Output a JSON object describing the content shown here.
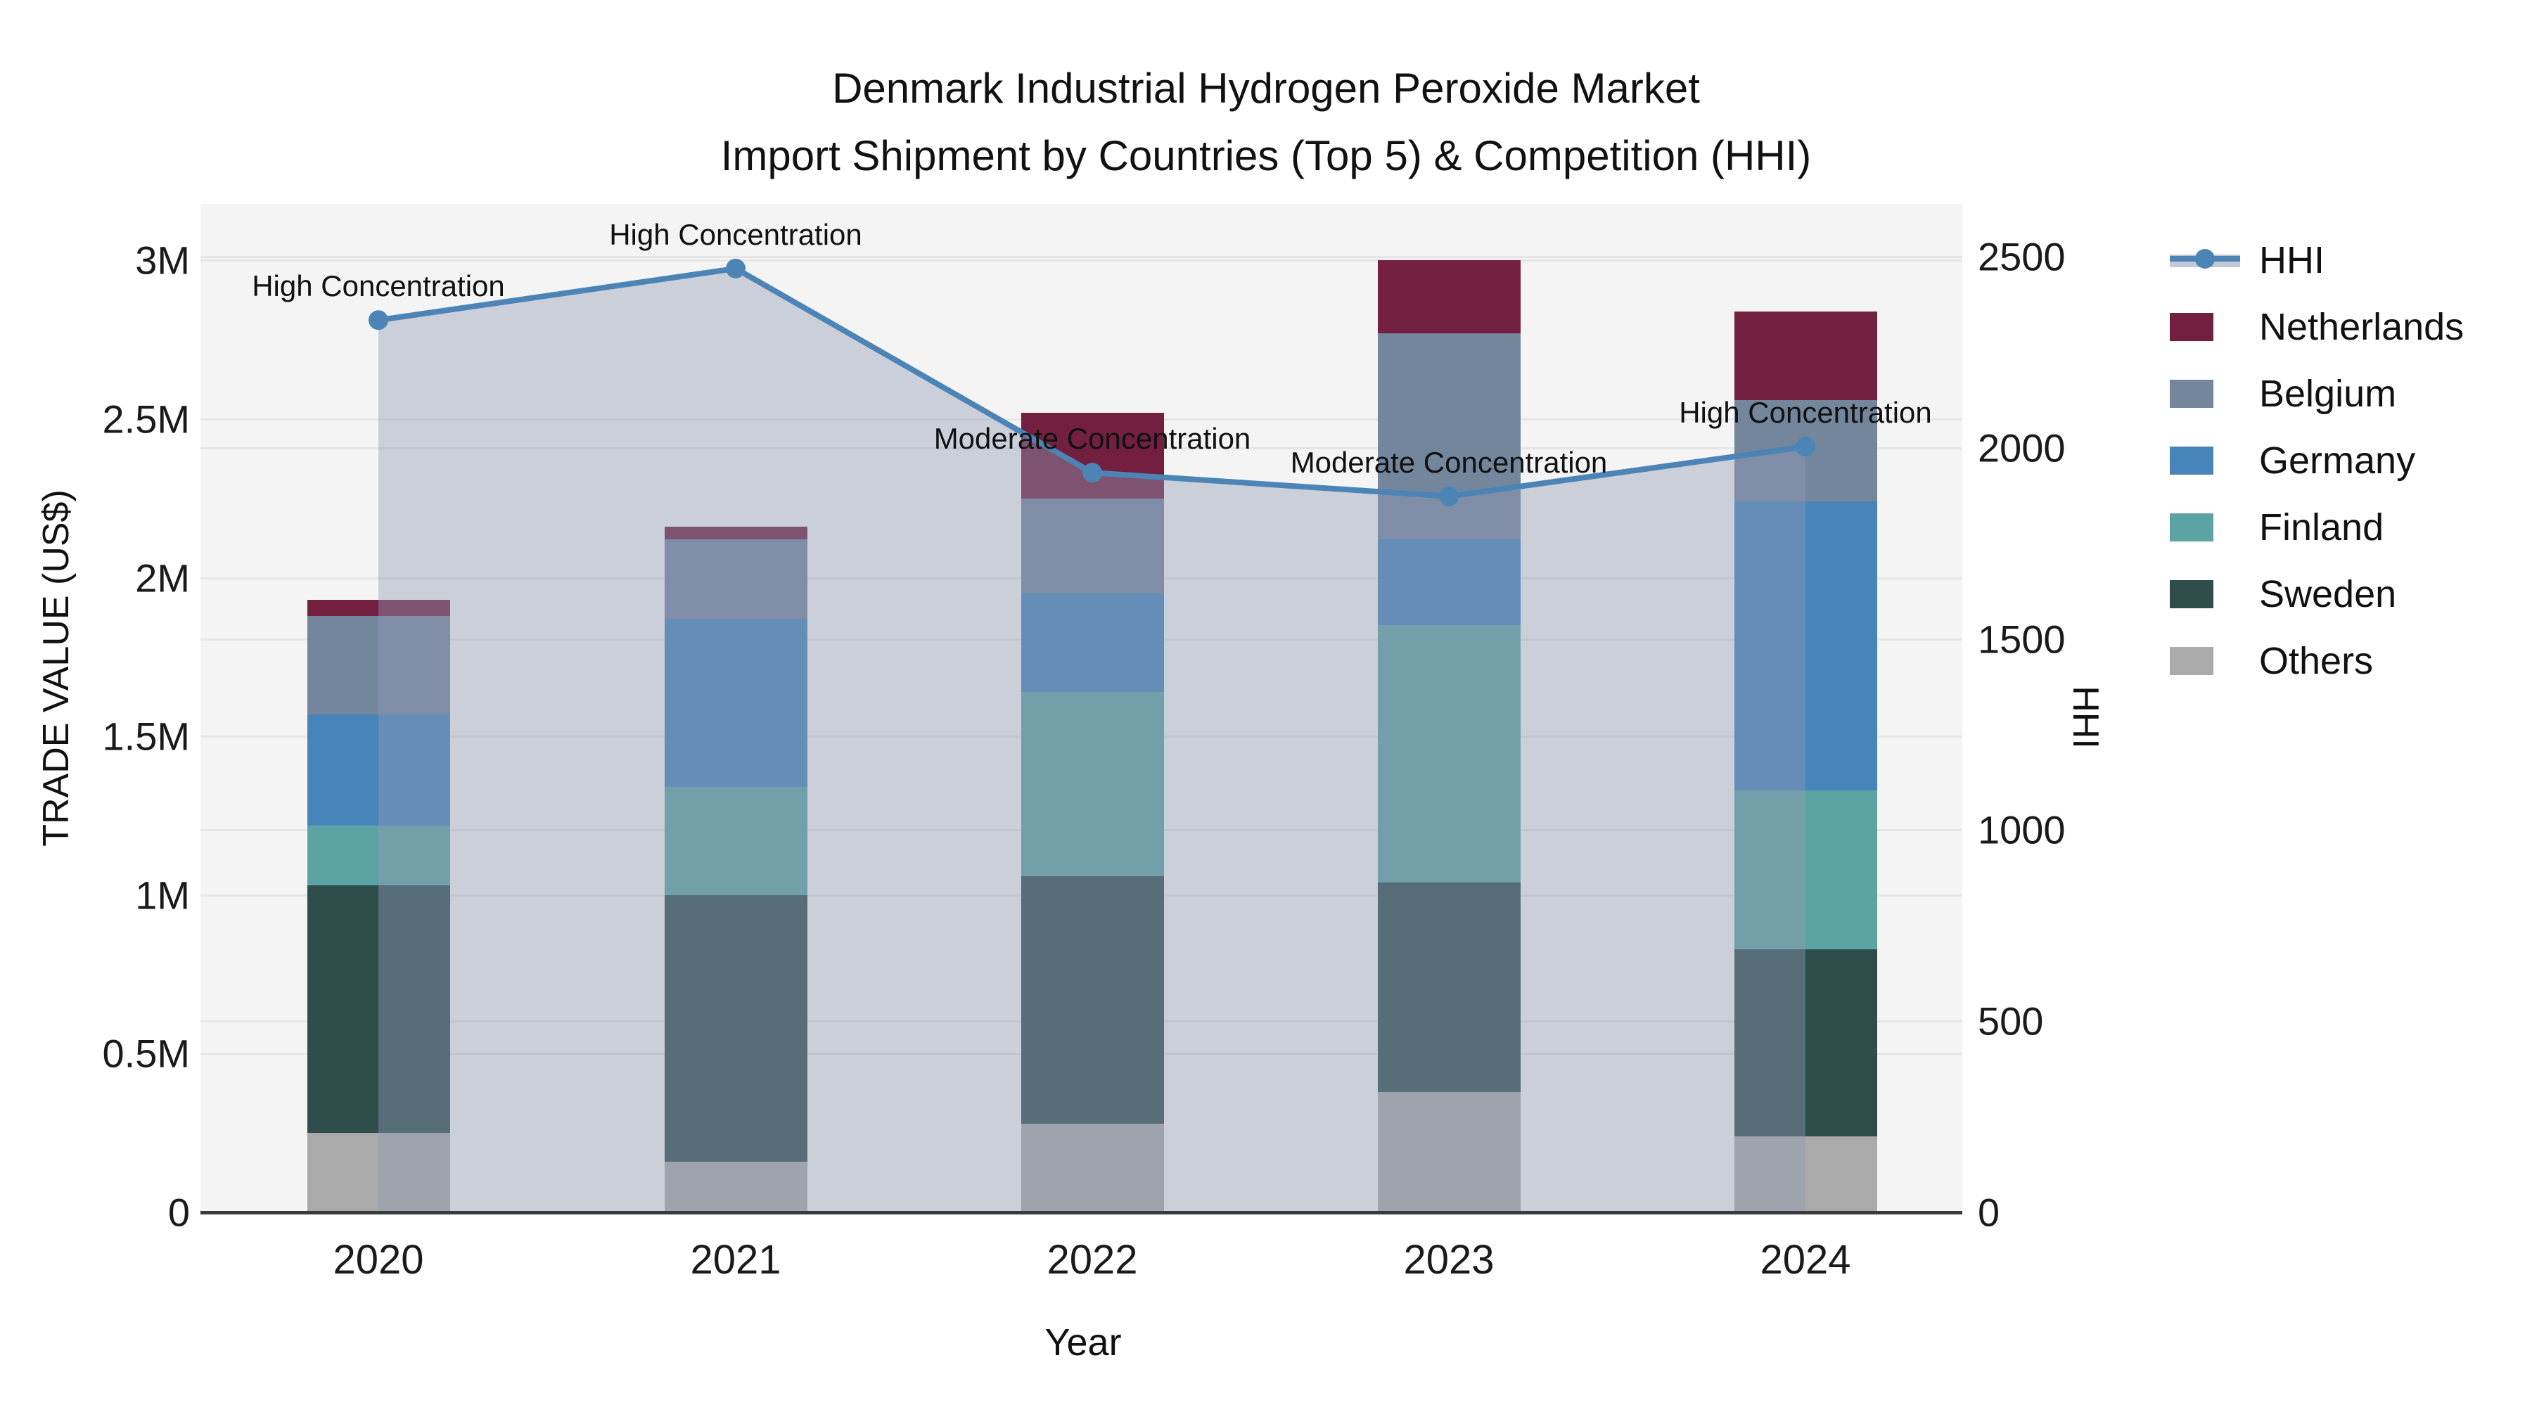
{
  "title": {
    "line1": "Denmark Industrial Hydrogen Peroxide Market",
    "line2": "Import Shipment by Countries (Top 5) & Competition (HHI)"
  },
  "axes": {
    "y_left": {
      "title": "TRADE VALUE (US$)",
      "ticks": [
        {
          "value": 0,
          "label": "0"
        },
        {
          "value": 0.5,
          "label": "0.5M"
        },
        {
          "value": 1,
          "label": "1M"
        },
        {
          "value": 1.5,
          "label": "1.5M"
        },
        {
          "value": 2,
          "label": "2M"
        },
        {
          "value": 2.5,
          "label": "2.5M"
        },
        {
          "value": 3,
          "label": "3M"
        }
      ]
    },
    "y_right": {
      "title": "HHI",
      "ticks": [
        {
          "value": 0,
          "label": "0"
        },
        {
          "value": 500,
          "label": "500"
        },
        {
          "value": 1000,
          "label": "1000"
        },
        {
          "value": 1500,
          "label": "1500"
        },
        {
          "value": 2000,
          "label": "2000"
        },
        {
          "value": 2500,
          "label": "2500"
        }
      ]
    },
    "x": {
      "title": "Year"
    }
  },
  "legend": {
    "items": [
      {
        "name": "HHI",
        "type": "line"
      },
      {
        "name": "Netherlands",
        "type": "swatch"
      },
      {
        "name": "Belgium",
        "type": "swatch"
      },
      {
        "name": "Germany",
        "type": "swatch"
      },
      {
        "name": "Finland",
        "type": "swatch"
      },
      {
        "name": "Sweden",
        "type": "swatch"
      },
      {
        "name": "Others",
        "type": "swatch"
      }
    ]
  },
  "colors": {
    "Netherlands": "#731f40",
    "Belgium": "#74869c",
    "Germany": "#4684ba",
    "Finland": "#5ca4a3",
    "Sweden": "#2f4d4b",
    "Others": "#aaaaaa",
    "hhi_line": "#4c84b6",
    "hhi_fill": "rgba(142,156,180,0.42)",
    "plot_bg": "#f4f4f4"
  },
  "chart_data": {
    "type": "bar+line",
    "title": "Denmark Industrial Hydrogen Peroxide Market — Import Shipment by Countries (Top 5) & Competition (HHI)",
    "categories": [
      "2020",
      "2021",
      "2022",
      "2023",
      "2024"
    ],
    "bar_unit": "million US$",
    "stack_order_bottom_to_top": [
      "Others",
      "Sweden",
      "Finland",
      "Germany",
      "Belgium",
      "Netherlands"
    ],
    "series": [
      {
        "name": "Others",
        "values": [
          0.25,
          0.16,
          0.28,
          0.38,
          0.24
        ]
      },
      {
        "name": "Sweden",
        "values": [
          0.78,
          0.84,
          0.78,
          0.66,
          0.59
        ]
      },
      {
        "name": "Finland",
        "values": [
          0.19,
          0.34,
          0.58,
          0.81,
          0.5
        ]
      },
      {
        "name": "Germany",
        "values": [
          0.35,
          0.53,
          0.31,
          0.27,
          0.91
        ]
      },
      {
        "name": "Belgium",
        "values": [
          0.31,
          0.25,
          0.3,
          0.65,
          0.32
        ]
      },
      {
        "name": "Netherlands",
        "values": [
          0.05,
          0.04,
          0.27,
          0.23,
          0.28
        ]
      }
    ],
    "bar_totals": [
      1.93,
      2.16,
      2.52,
      3.0,
      2.84
    ],
    "line_series": {
      "name": "HHI",
      "axis": "right",
      "values": [
        2334,
        2469,
        1935,
        1873,
        2003
      ],
      "area_fill": true
    },
    "annotations": [
      {
        "x": "2020",
        "text": "High Concentration"
      },
      {
        "x": "2021",
        "text": "High Concentration"
      },
      {
        "x": "2022",
        "text": "Moderate Concentration"
      },
      {
        "x": "2023",
        "text": "Moderate Concentration"
      },
      {
        "x": "2024",
        "text": "High Concentration"
      }
    ],
    "xlabel": "Year",
    "ylabel_left": "TRADE VALUE (US$)",
    "ylabel_right": "HHI",
    "ylim_left": [
      0,
      3.178
    ],
    "ylim_right": [
      0,
      2638
    ],
    "grid": true,
    "legend_position": "right"
  }
}
